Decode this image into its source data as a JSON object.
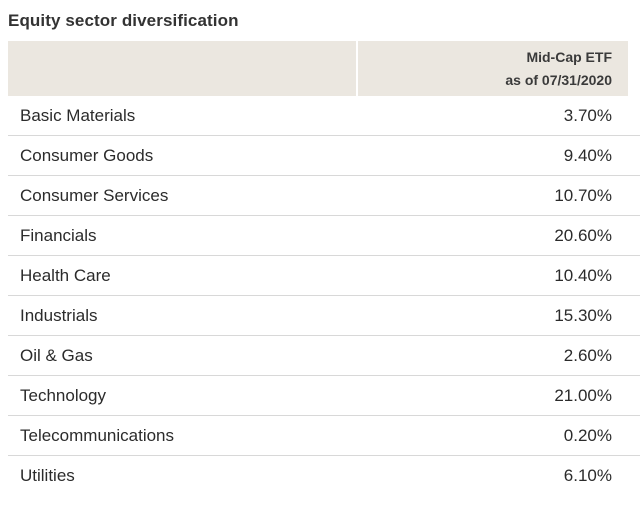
{
  "title": "Equity sector diversification",
  "table": {
    "column_header_line1": "Mid-Cap ETF",
    "column_header_line2": "as of 07/31/2020",
    "rows": [
      {
        "sector": "Basic Materials",
        "value": "3.70%"
      },
      {
        "sector": "Consumer Goods",
        "value": "9.40%"
      },
      {
        "sector": "Consumer Services",
        "value": "10.70%"
      },
      {
        "sector": "Financials",
        "value": "20.60%"
      },
      {
        "sector": "Health Care",
        "value": "10.40%"
      },
      {
        "sector": "Industrials",
        "value": "15.30%"
      },
      {
        "sector": "Oil & Gas",
        "value": "2.60%"
      },
      {
        "sector": "Technology",
        "value": "21.00%"
      },
      {
        "sector": "Telecommunications",
        "value": "0.20%"
      },
      {
        "sector": "Utilities",
        "value": "6.10%"
      }
    ]
  },
  "colors": {
    "header_background": "#ebe7e0",
    "row_divider": "#d8d8d8",
    "text": "#2b2b2b"
  }
}
